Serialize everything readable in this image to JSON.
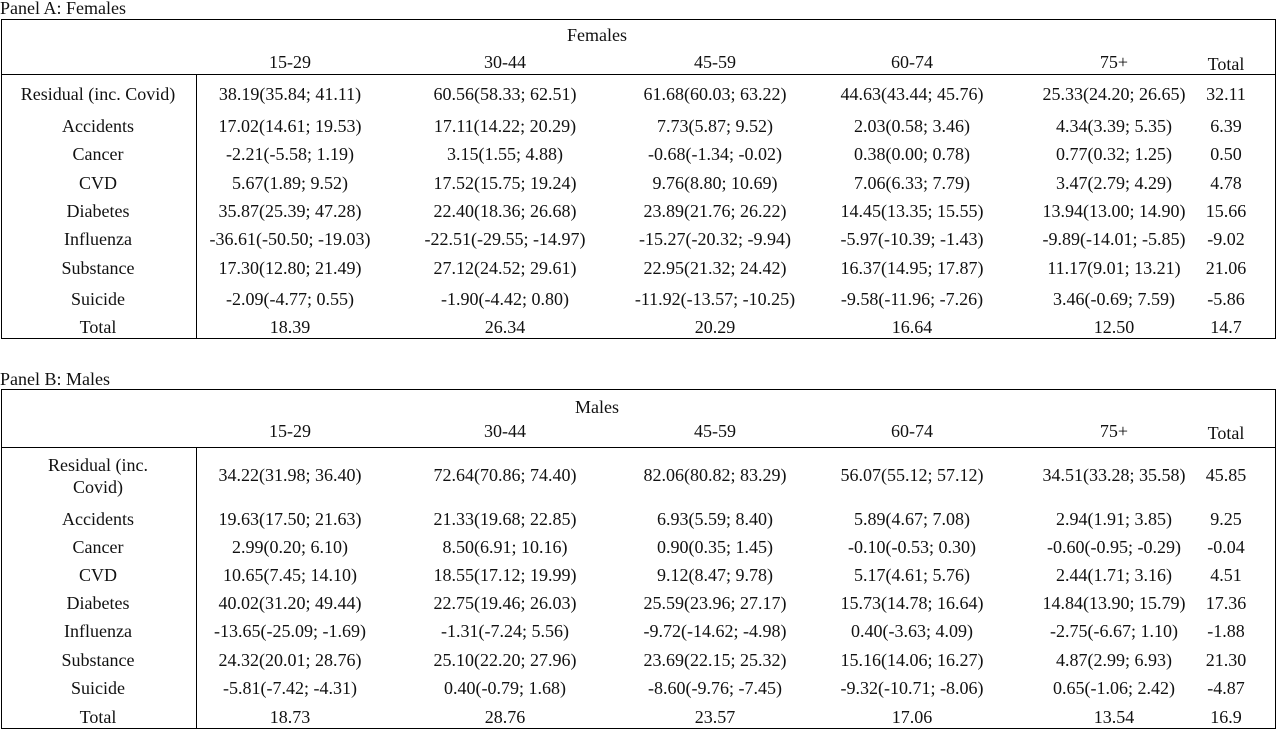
{
  "panels": [
    {
      "title": "Panel A: Females",
      "group_header": "Females",
      "columns": [
        "15-29",
        "30-44",
        "45-59",
        "60-74",
        "75+",
        "Total"
      ],
      "rows": [
        {
          "label": "Residual (inc. Covid)",
          "cells": [
            "38.19(35.84; 41.11)",
            "60.56(58.33; 62.51)",
            "61.68(60.03; 63.22)",
            "44.63(43.44; 45.76)",
            "25.33(24.20; 26.65)",
            "32.11"
          ]
        },
        {
          "label": "Accidents",
          "cells": [
            "17.02(14.61; 19.53)",
            "17.11(14.22; 20.29)",
            "7.73(5.87; 9.52)",
            "2.03(0.58; 3.46)",
            "4.34(3.39; 5.35)",
            "6.39"
          ]
        },
        {
          "label": "Cancer",
          "cells": [
            "-2.21(-5.58; 1.19)",
            "3.15(1.55; 4.88)",
            "-0.68(-1.34; -0.02)",
            "0.38(0.00; 0.78)",
            "0.77(0.32; 1.25)",
            "0.50"
          ]
        },
        {
          "label": "CVD",
          "cells": [
            "5.67(1.89; 9.52)",
            "17.52(15.75; 19.24)",
            "9.76(8.80; 10.69)",
            "7.06(6.33; 7.79)",
            "3.47(2.79; 4.29)",
            "4.78"
          ]
        },
        {
          "label": "Diabetes",
          "cells": [
            "35.87(25.39; 47.28)",
            "22.40(18.36; 26.68)",
            "23.89(21.76; 26.22)",
            "14.45(13.35; 15.55)",
            "13.94(13.00; 14.90)",
            "15.66"
          ]
        },
        {
          "label": "Influenza",
          "cells": [
            "-36.61(-50.50; -19.03)",
            "-22.51(-29.55; -14.97)",
            "-15.27(-20.32; -9.94)",
            "-5.97(-10.39; -1.43)",
            "-9.89(-14.01; -5.85)",
            "-9.02"
          ]
        },
        {
          "label": "Substance",
          "cells": [
            "17.30(12.80; 21.49)",
            "27.12(24.52; 29.61)",
            "22.95(21.32; 24.42)",
            "16.37(14.95; 17.87)",
            "11.17(9.01; 13.21)",
            "21.06"
          ]
        },
        {
          "label": "Suicide",
          "cells": [
            "-2.09(-4.77; 0.55)",
            "-1.90(-4.42; 0.80)",
            "-11.92(-13.57; -10.25)",
            "-9.58(-11.96; -7.26)",
            "3.46(-0.69; 7.59)",
            "-5.86"
          ]
        },
        {
          "label": "Total",
          "cells": [
            "18.39",
            "26.34",
            "20.29",
            "16.64",
            "12.50",
            "14.7"
          ]
        }
      ]
    },
    {
      "title": "Panel B: Males",
      "group_header": "Males",
      "columns": [
        "15-29",
        "30-44",
        "45-59",
        "60-74",
        "75+",
        "Total"
      ],
      "rows": [
        {
          "label": "Residual (inc. Covid)",
          "cells": [
            "34.22(31.98; 36.40)",
            "72.64(70.86; 74.40)",
            "82.06(80.82; 83.29)",
            "56.07(55.12; 57.12)",
            "34.51(33.28; 35.58)",
            "45.85"
          ]
        },
        {
          "label": "Accidents",
          "cells": [
            "19.63(17.50; 21.63)",
            "21.33(19.68; 22.85)",
            "6.93(5.59; 8.40)",
            "5.89(4.67; 7.08)",
            "2.94(1.91; 3.85)",
            "9.25"
          ]
        },
        {
          "label": "Cancer",
          "cells": [
            "2.99(0.20; 6.10)",
            "8.50(6.91; 10.16)",
            "0.90(0.35; 1.45)",
            "-0.10(-0.53; 0.30)",
            "-0.60(-0.95; -0.29)",
            "-0.04"
          ]
        },
        {
          "label": "CVD",
          "cells": [
            "10.65(7.45; 14.10)",
            "18.55(17.12; 19.99)",
            "9.12(8.47; 9.78)",
            "5.17(4.61; 5.76)",
            "2.44(1.71; 3.16)",
            "4.51"
          ]
        },
        {
          "label": "Diabetes",
          "cells": [
            "40.02(31.20; 49.44)",
            "22.75(19.46; 26.03)",
            "25.59(23.96; 27.17)",
            "15.73(14.78; 16.64)",
            "14.84(13.90; 15.79)",
            "17.36"
          ]
        },
        {
          "label": "Influenza",
          "cells": [
            "-13.65(-25.09; -1.69)",
            "-1.31(-7.24; 5.56)",
            "-9.72(-14.62; -4.98)",
            "0.40(-3.63; 4.09)",
            "-2.75(-6.67; 1.10)",
            "-1.88"
          ]
        },
        {
          "label": "Substance",
          "cells": [
            "24.32(20.01; 28.76)",
            "25.10(22.20; 27.96)",
            "23.69(22.15; 25.32)",
            "15.16(14.06; 16.27)",
            "4.87(2.99; 6.93)",
            "21.30"
          ]
        },
        {
          "label": "Suicide",
          "cells": [
            "-5.81(-7.42; -4.31)",
            "0.40(-0.79; 1.68)",
            "-8.60(-9.76; -7.45)",
            "-9.32(-10.71; -8.06)",
            "0.65(-1.06; 2.42)",
            "-4.87"
          ]
        },
        {
          "label": "Total",
          "cells": [
            "18.73",
            "28.76",
            "23.57",
            "17.06",
            "13.54",
            "16.9"
          ]
        }
      ]
    }
  ]
}
